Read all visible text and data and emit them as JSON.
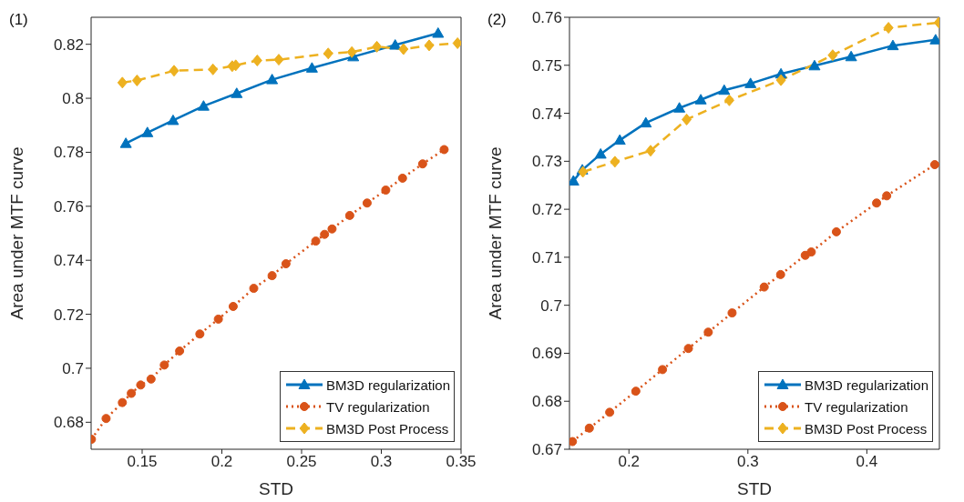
{
  "chart_data": [
    {
      "type": "line",
      "title": "(1)",
      "xlabel": "STD",
      "ylabel": "Area under MTF curve",
      "xlim": [
        0.118,
        0.35
      ],
      "xticks": [
        0.15,
        0.2,
        0.25,
        0.3,
        0.35
      ],
      "ylim": [
        0.67,
        0.83
      ],
      "yticks": [
        0.68,
        0.7,
        0.72,
        0.74,
        0.76,
        0.78,
        0.8,
        0.82
      ],
      "grid": false,
      "legend": "bottom right",
      "series": [
        {
          "name": "BM3D regularization",
          "color": "#0072bd",
          "line_style": "solid",
          "marker": "triangle",
          "x": [
            0.1398,
            0.1533,
            0.1694,
            0.1885,
            0.2093,
            0.2315,
            0.2565,
            0.2824,
            0.3087,
            0.3356
          ],
          "values": [
            0.7833,
            0.7873,
            0.7918,
            0.7971,
            0.8018,
            0.8069,
            0.8112,
            0.8154,
            0.8197,
            0.8241
          ]
        },
        {
          "name": "TV regularization",
          "color": "#d95319",
          "line_style": "dotted",
          "marker": "circle",
          "x": [
            0.1182,
            0.1274,
            0.1376,
            0.1432,
            0.1491,
            0.1556,
            0.1639,
            0.1735,
            0.1862,
            0.1978,
            0.2071,
            0.22,
            0.2315,
            0.2402,
            0.2589,
            0.2644,
            0.2691,
            0.2802,
            0.2911,
            0.3028,
            0.3133,
            0.3259,
            0.3394
          ],
          "values": [
            0.6737,
            0.6814,
            0.6873,
            0.6907,
            0.6938,
            0.696,
            0.7012,
            0.7064,
            0.7127,
            0.7182,
            0.7229,
            0.7296,
            0.7343,
            0.7387,
            0.7471,
            0.7496,
            0.7516,
            0.7566,
            0.7612,
            0.766,
            0.7704,
            0.7757,
            0.781
          ]
        },
        {
          "name": "BM3D Post Process",
          "color": "#edb120",
          "line_style": "dashed",
          "marker": "diamond",
          "x": [
            0.1376,
            0.1468,
            0.17,
            0.1944,
            0.2065,
            0.2087,
            0.2222,
            0.2357,
            0.2667,
            0.2815,
            0.2972,
            0.3139,
            0.33,
            0.3478
          ],
          "values": [
            0.8058,
            0.8066,
            0.8102,
            0.8107,
            0.8119,
            0.8122,
            0.814,
            0.8143,
            0.8166,
            0.8171,
            0.8191,
            0.8182,
            0.8196,
            0.8204
          ]
        }
      ]
    },
    {
      "type": "line",
      "title": "(2)",
      "xlabel": "STD",
      "ylabel": "Area under MTF curve",
      "xlim": [
        0.15,
        0.461
      ],
      "xticks": [
        0.2,
        0.3,
        0.4
      ],
      "ylim": [
        0.67,
        0.76
      ],
      "yticks": [
        0.67,
        0.68,
        0.69,
        0.7,
        0.71,
        0.72,
        0.73,
        0.74,
        0.75,
        0.76
      ],
      "grid": false,
      "legend": "bottom right",
      "series": [
        {
          "name": "BM3D regularization",
          "color": "#0072bd",
          "line_style": "solid",
          "marker": "triangle",
          "x": [
            0.1533,
            0.1608,
            0.1762,
            0.1923,
            0.2142,
            0.2424,
            0.2604,
            0.2801,
            0.3022,
            0.3278,
            0.356,
            0.3868,
            0.4219,
            0.4578
          ],
          "values": [
            0.7259,
            0.7282,
            0.7315,
            0.7344,
            0.738,
            0.7411,
            0.7428,
            0.7448,
            0.7462,
            0.7482,
            0.7499,
            0.7518,
            0.7541,
            0.7553
          ]
        },
        {
          "name": "TV regularization",
          "color": "#d95319",
          "line_style": "dotted",
          "marker": "circle",
          "x": [
            0.1525,
            0.1667,
            0.1838,
            0.2058,
            0.2282,
            0.25,
            0.2667,
            0.2867,
            0.3137,
            0.3275,
            0.3482,
            0.3533,
            0.3744,
            0.4082,
            0.4167,
            0.4571
          ],
          "values": [
            0.6716,
            0.6744,
            0.6777,
            0.6821,
            0.6866,
            0.691,
            0.6944,
            0.6984,
            0.7038,
            0.7064,
            0.7104,
            0.7111,
            0.7153,
            0.7213,
            0.7228,
            0.7293
          ]
        },
        {
          "name": "BM3D Post Process",
          "color": "#edb120",
          "line_style": "dashed",
          "marker": "diamond",
          "x": [
            0.1613,
            0.1882,
            0.2182,
            0.2485,
            0.2844,
            0.3278,
            0.3713,
            0.4182,
            0.4605
          ],
          "values": [
            0.7278,
            0.7299,
            0.7322,
            0.7387,
            0.7427,
            0.7469,
            0.7521,
            0.7578,
            0.7589
          ]
        }
      ]
    }
  ]
}
